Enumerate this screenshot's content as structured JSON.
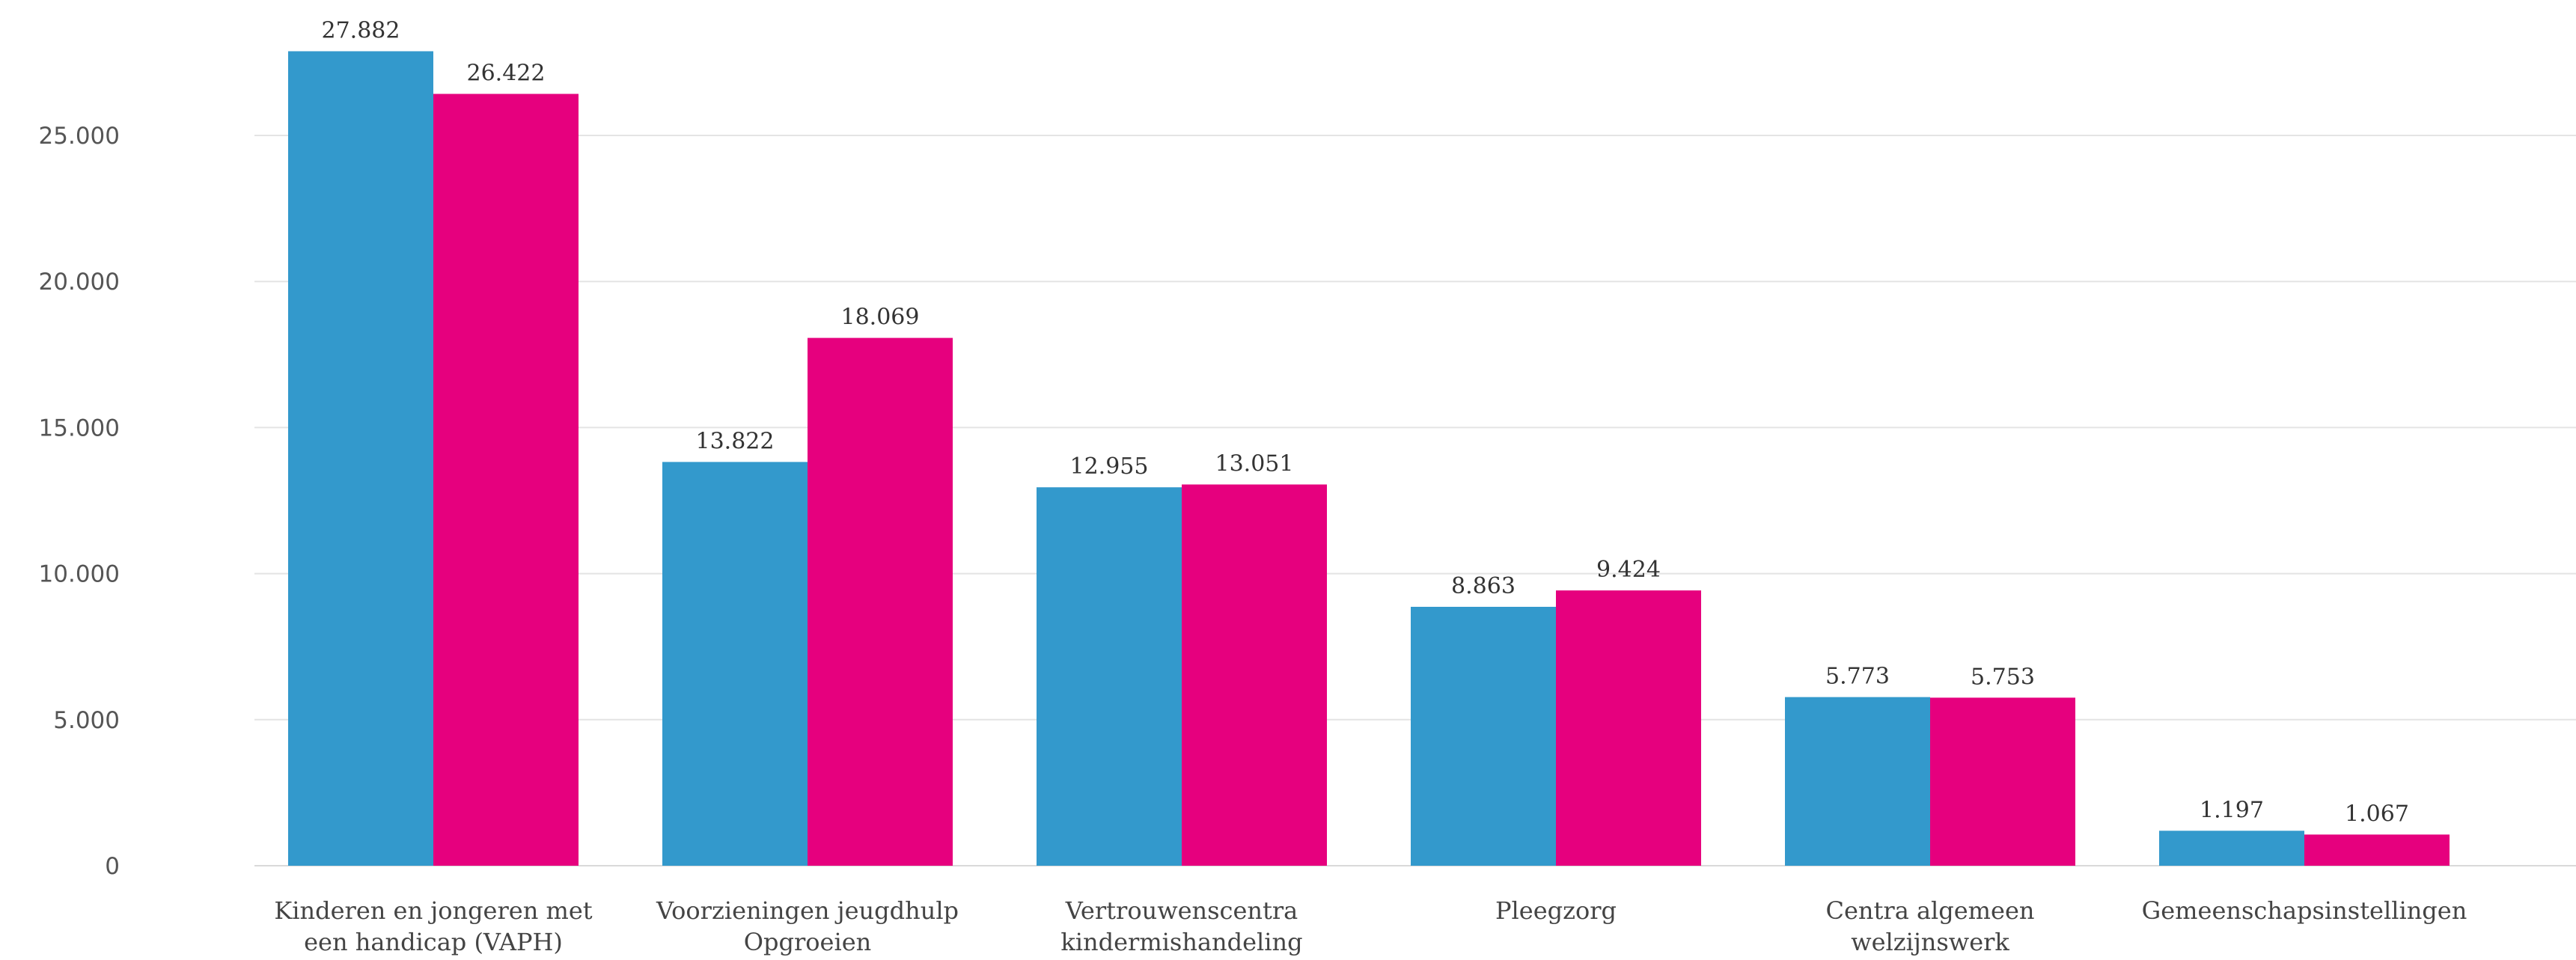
{
  "chart_data": {
    "type": "bar",
    "title": "",
    "xlabel": "",
    "ylabel": "",
    "categories": [
      [
        "Kinderen en jongeren met",
        "een handicap (VAPH)"
      ],
      [
        "Voorzieningen jeugdhulp",
        "Opgroeien"
      ],
      [
        "Vertrouwenscentra",
        "kindermishandeling"
      ],
      [
        "Pleegzorg"
      ],
      [
        "Centra algemeen",
        "welzijnswerk"
      ],
      [
        "Gemeenschapsinstellingen"
      ]
    ],
    "series": [
      {
        "color": "#3399cc",
        "values": [
          27882,
          13822,
          12955,
          8863,
          5773,
          1197
        ],
        "labels": [
          "27.882",
          "13.822",
          "12.955",
          "8.863",
          "5.773",
          "1.197"
        ]
      },
      {
        "color": "#e6007e",
        "values": [
          26422,
          18069,
          13051,
          9424,
          5753,
          1067
        ],
        "labels": [
          "26.422",
          "18.069",
          "13.051",
          "9.424",
          "5.753",
          "1.067"
        ]
      }
    ],
    "ylim": [
      0,
      30000
    ],
    "yticks": [
      {
        "value": 0,
        "label": "0"
      },
      {
        "value": 5000,
        "label": "5.000"
      },
      {
        "value": 10000,
        "label": "10.000"
      },
      {
        "value": 15000,
        "label": "15.000"
      },
      {
        "value": 20000,
        "label": "20.000"
      },
      {
        "value": 25000,
        "label": "25.000"
      }
    ],
    "grid": true,
    "legend": "none"
  }
}
